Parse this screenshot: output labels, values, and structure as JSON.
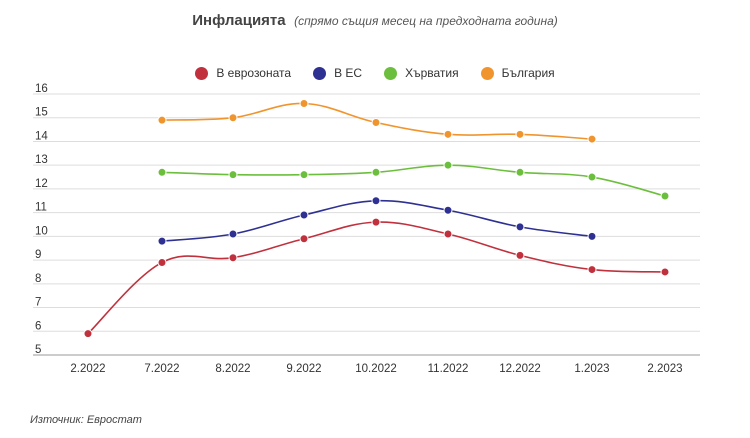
{
  "chart_data": {
    "type": "line",
    "title": "Инфлацията",
    "subtitle": "(спрямо същия месец на предходната година)",
    "categories": [
      "2.2022",
      "7.2022",
      "8.2022",
      "9.2022",
      "10.2022",
      "11.2022",
      "12.2022",
      "1.2023",
      "2.2023"
    ],
    "ylim": [
      5,
      16
    ],
    "yticks": [
      5,
      6,
      7,
      8,
      9,
      10,
      11,
      12,
      13,
      14,
      15,
      16
    ],
    "grid": true,
    "legend_position": "top-center",
    "series": [
      {
        "name": "В еврозоната",
        "color": "#c0313d",
        "values": [
          5.9,
          8.9,
          9.1,
          9.9,
          10.6,
          10.1,
          9.2,
          8.6,
          8.5
        ]
      },
      {
        "name": "В ЕС",
        "color": "#2e3192",
        "values": [
          null,
          9.8,
          10.1,
          10.9,
          11.5,
          11.1,
          10.4,
          10.0,
          null
        ]
      },
      {
        "name": "Хърватия",
        "color": "#6cbf3c",
        "values": [
          null,
          12.7,
          12.6,
          12.6,
          12.7,
          13.0,
          12.7,
          12.5,
          11.7
        ]
      },
      {
        "name": "България",
        "color": "#f0952e",
        "values": [
          null,
          14.9,
          15.0,
          15.6,
          14.8,
          14.3,
          14.3,
          14.1,
          null
        ]
      }
    ]
  },
  "source": "Източник: Евростат"
}
